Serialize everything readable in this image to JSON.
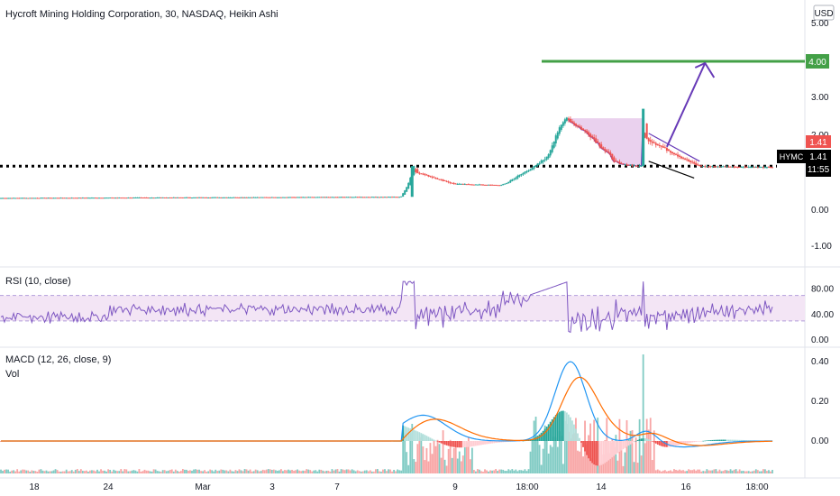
{
  "header": {
    "title": "Hycroft Mining Holding Corporation, 30, NASDAQ, Heikin Ashi",
    "currency": "USD"
  },
  "chart_data": {
    "type": "candlestick",
    "price_pane": {
      "y_ticks": [
        "5.00",
        "4.00",
        "3.00",
        "2.00",
        "0.00",
        "-1.00"
      ],
      "yscale": "log",
      "target_level": 4.0,
      "target_label": "4.00",
      "support_level": 1.45,
      "last_price_label": "1.41",
      "ticker_label": "HYMC",
      "ticker_price": "1.41",
      "countdown": "11:55",
      "phases": [
        {
          "from": 0,
          "to": 108,
          "start": 0.42,
          "end": 0.44,
          "noise": 0.01
        },
        {
          "from": 108,
          "to": 220,
          "start": 0.44,
          "end": 0.46,
          "noise": 0.01
        },
        {
          "from": 220,
          "to": 228,
          "start": 0.46,
          "end": 1.45,
          "noise": 0.04
        },
        {
          "from": 228,
          "to": 250,
          "start": 1.3,
          "end": 1.0,
          "noise": 0.03
        },
        {
          "from": 250,
          "to": 275,
          "start": 1.0,
          "end": 0.95,
          "noise": 0.02
        },
        {
          "from": 275,
          "to": 300,
          "start": 0.95,
          "end": 1.6,
          "noise": 0.04
        },
        {
          "from": 300,
          "to": 312,
          "start": 1.6,
          "end": 2.5,
          "noise": 0.08
        },
        {
          "from": 312,
          "to": 340,
          "start": 2.4,
          "end": 1.5,
          "noise": 0.06
        },
        {
          "from": 340,
          "to": 352,
          "start": 1.5,
          "end": 1.45,
          "noise": 0.03
        },
        {
          "from": 352,
          "to": 354,
          "start": 1.45,
          "end": 2.7,
          "noise": 0.1
        },
        {
          "from": 354,
          "to": 385,
          "start": 1.95,
          "end": 1.45,
          "noise": 0.04
        },
        {
          "from": 385,
          "to": 425,
          "start": 1.45,
          "end": 1.42,
          "noise": 0.02
        }
      ],
      "annotations": [
        "cup-and-handle",
        "descending-channel",
        "target-arrow"
      ]
    },
    "rsi_pane": {
      "title": "RSI (10, close)",
      "y_ticks": [
        "80.00",
        "40.00",
        "0.00"
      ],
      "ylim": [
        0,
        100
      ],
      "band": [
        30,
        70
      ]
    },
    "macd_pane": {
      "title": "MACD (12, 26, close, 9)",
      "subtitle": "Vol",
      "y_ticks": [
        "0.40",
        "0.20",
        "0.00"
      ],
      "ylim": [
        -0.15,
        0.42
      ]
    },
    "x_ticks": [
      "18",
      "24",
      "Mar",
      "3",
      "7",
      "9",
      "18:00",
      "14",
      "16",
      "18:00"
    ],
    "colors": {
      "up": "#26a69a",
      "down": "#ef5350",
      "target": "#43a047",
      "arrow": "#673ab7",
      "rsi_line": "#7e57c2",
      "rsi_band": "#f3e5f5",
      "macd_line": "#2196f3",
      "signal_line": "#ff6d00",
      "hist_up_strong": "#26a69a",
      "hist_up_weak": "#b2dfdb",
      "hist_down_strong": "#ef5350",
      "hist_down_weak": "#ffcdd2",
      "vol_up": "#80cbc4",
      "vol_down": "#f8a5a5",
      "cup_fill": "#e1bee7"
    }
  }
}
